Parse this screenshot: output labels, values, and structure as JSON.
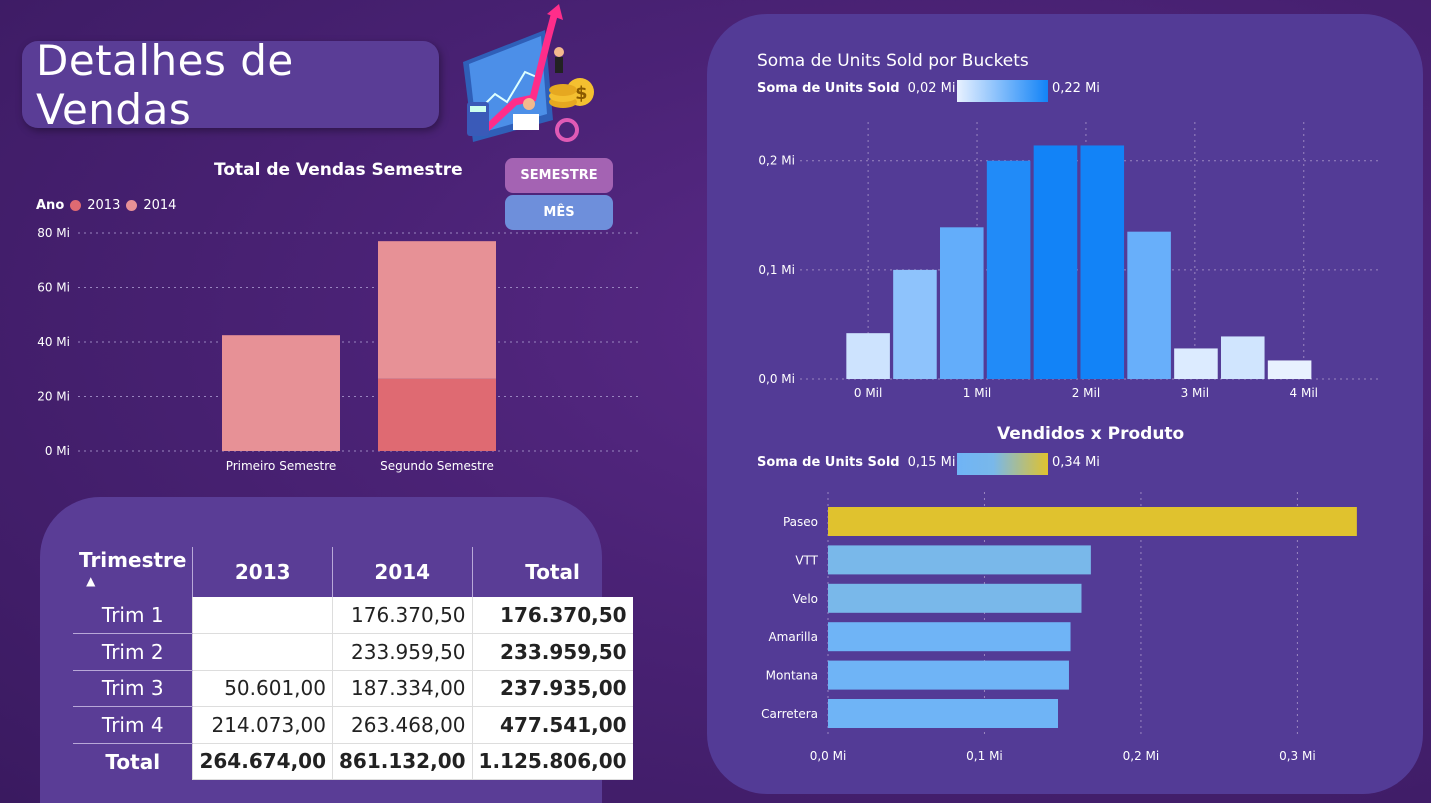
{
  "page_title": "Detalhes de Vendas",
  "buttons": {
    "semestre": "SEMESTRE",
    "mes": "MÊS"
  },
  "semester_chart": {
    "title": "Total de Vendas Semestre",
    "legend_title": "Ano",
    "legend": [
      {
        "label": "2013",
        "color": "#df6a72"
      },
      {
        "label": "2014",
        "color": "#e79196"
      }
    ],
    "chart_data": {
      "type": "bar",
      "stacked": true,
      "title": "Total de Vendas Semestre",
      "categories": [
        "Primeiro Semestre",
        "Segundo Semestre"
      ],
      "series": [
        {
          "name": "2013",
          "values": [
            0,
            26.5
          ]
        },
        {
          "name": "2014",
          "values": [
            42.5,
            50.5
          ]
        }
      ],
      "ylim": [
        0,
        80
      ],
      "yticks": [
        "0 Mi",
        "20 Mi",
        "40 Mi",
        "60 Mi",
        "80 Mi"
      ],
      "grid": true,
      "legend_position": "top-left"
    }
  },
  "matrix": {
    "headers": [
      "Trimestre",
      "2013",
      "2014",
      "Total"
    ],
    "rows": [
      {
        "label": "Trim 1",
        "v2013": "",
        "v2014": "176.370,50",
        "total": "176.370,50"
      },
      {
        "label": "Trim 2",
        "v2013": "",
        "v2014": "233.959,50",
        "total": "233.959,50"
      },
      {
        "label": "Trim 3",
        "v2013": "50.601,00",
        "v2014": "187.334,00",
        "total": "237.935,00"
      },
      {
        "label": "Trim 4",
        "v2013": "214.073,00",
        "v2014": "263.468,00",
        "total": "477.541,00"
      }
    ],
    "total_row": {
      "label": "Total",
      "v2013": "264.674,00",
      "v2014": "861.132,00",
      "total": "1.125.806,00"
    }
  },
  "buckets_chart": {
    "title": "Soma de Units Sold por Buckets",
    "legend_label": "Soma de Units Sold",
    "legend_min": "0,02 Mi",
    "legend_max": "0,22 Mi",
    "colors": {
      "low": "#e8f1ff",
      "high": "#1283f7"
    },
    "chart_data": {
      "type": "bar",
      "title": "Soma de Units Sold por Buckets",
      "x": [
        0,
        430,
        860,
        1290,
        1720,
        2150,
        2580,
        3010,
        3440,
        3870
      ],
      "values": [
        0.042,
        0.1,
        0.139,
        0.2,
        0.214,
        0.214,
        0.135,
        0.028,
        0.039,
        0.017
      ],
      "xlim": [
        -350,
        4700
      ],
      "ylim": [
        0,
        0.23
      ],
      "xticks": [
        "0 Mil",
        "1 Mil",
        "2 Mil",
        "3 Mil",
        "4 Mil"
      ],
      "yticks": [
        "0,0 Mi",
        "0,1 Mi",
        "0,2 Mi"
      ],
      "grid": true
    }
  },
  "product_chart": {
    "title": "Vendidos x Produto",
    "legend_label": "Soma de Units Sold",
    "legend_min": "0,15 Mi",
    "legend_max": "0,34 Mi",
    "colors": {
      "low": "#6fb4f6",
      "mid": "#79b8ea",
      "high": "#e0c22e"
    },
    "chart_data": {
      "type": "bar",
      "orientation": "horizontal",
      "title": "Vendidos x Produto",
      "categories": [
        "Paseo",
        "VTT",
        "Velo",
        "Amarilla",
        "Montana",
        "Carretera"
      ],
      "values": [
        0.338,
        0.168,
        0.162,
        0.155,
        0.154,
        0.147
      ],
      "xlim": [
        0,
        0.34
      ],
      "xticks": [
        "0,0 Mi",
        "0,1 Mi",
        "0,2 Mi",
        "0,3 Mi"
      ],
      "grid": true
    }
  }
}
